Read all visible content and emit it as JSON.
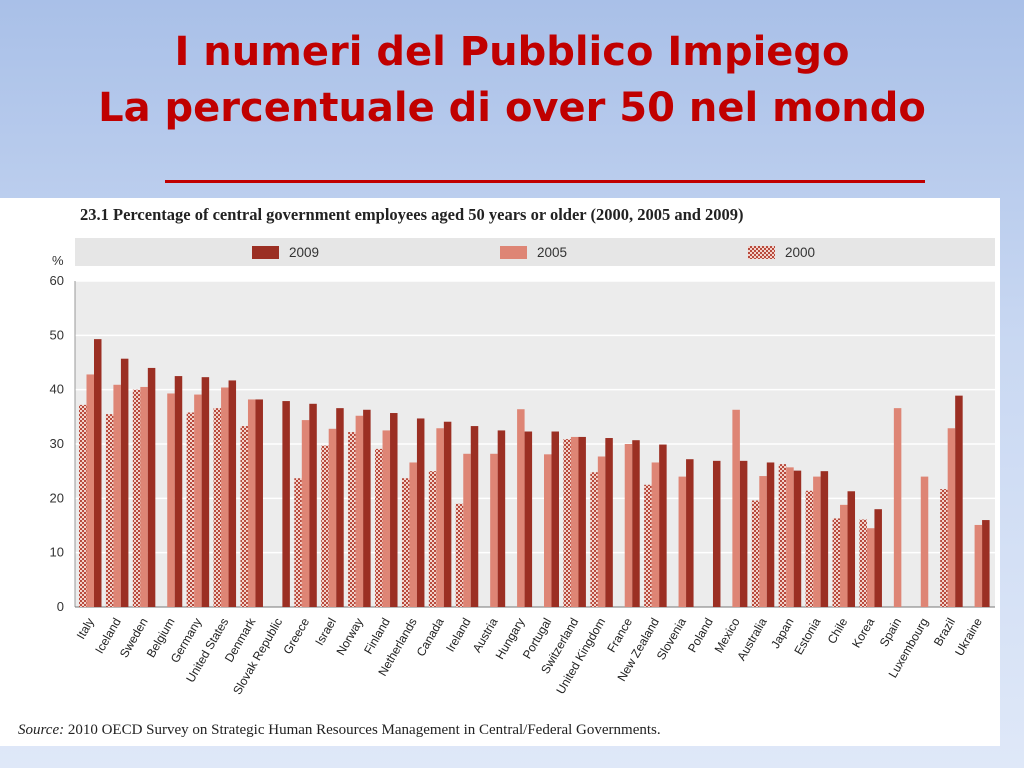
{
  "slide": {
    "title_line1": "I numeri del Pubblico Impiego",
    "title_line2": "La percentuale di over 50 nel mondo"
  },
  "colors": {
    "y2009": "#9b2f23",
    "y2005": "#de8575",
    "y2000": "#c2584a",
    "title_red": "#c00000",
    "legend_band": "#e6e6e6",
    "plot_bg": "#ececec"
  },
  "source": {
    "label": "Source:",
    "text": "2010 OECD Survey on Strategic Human Resources Management in Central/Federal Governments."
  },
  "chart_data": {
    "type": "bar",
    "title": "23.1  Percentage of central government employees aged 50 years or older (2000, 2005 and 2009)",
    "ylabel": "%",
    "xlabel": "",
    "ylim": [
      0,
      60
    ],
    "yticks": [
      0,
      10,
      20,
      30,
      40,
      50,
      60
    ],
    "grid": true,
    "legend_position": "top",
    "categories": [
      "Italy",
      "Iceland",
      "Sweden",
      "Belgium",
      "Germany",
      "United States",
      "Denmark",
      "Slovak Republic",
      "Greece",
      "Israel",
      "Norway",
      "Finland",
      "Netherlands",
      "Canada",
      "Ireland",
      "Austria",
      "Hungary",
      "Portugal",
      "Switzerland",
      "United Kingdom",
      "France",
      "New Zealand",
      "Slovenia",
      "Poland",
      "Mexico",
      "Australia",
      "Japan",
      "Estonia",
      "Chile",
      "Korea",
      "Spain",
      "Luxembourg",
      "Brazil",
      "Ukraine"
    ],
    "series": [
      {
        "name": "2009",
        "values": [
          49.3,
          45.7,
          44.0,
          42.5,
          42.3,
          41.7,
          38.2,
          37.9,
          37.4,
          36.6,
          36.3,
          35.7,
          34.7,
          34.1,
          33.3,
          32.5,
          32.3,
          32.3,
          31.3,
          31.1,
          30.7,
          29.9,
          27.2,
          26.9,
          26.9,
          26.6,
          25.1,
          25.0,
          21.3,
          18.0,
          null,
          null,
          38.9,
          16.0
        ]
      },
      {
        "name": "2005",
        "values": [
          42.8,
          40.9,
          40.5,
          39.3,
          39.1,
          40.4,
          38.2,
          null,
          34.4,
          32.8,
          35.2,
          32.5,
          26.6,
          32.9,
          28.2,
          28.2,
          36.4,
          28.1,
          31.3,
          27.7,
          30.0,
          26.6,
          24.0,
          null,
          36.3,
          24.1,
          25.7,
          24.0,
          18.8,
          14.5,
          36.6,
          24.0,
          32.9,
          15.1
        ]
      },
      {
        "name": "2000",
        "values": [
          37.2,
          35.5,
          40.0,
          null,
          35.8,
          36.6,
          33.3,
          null,
          23.7,
          29.7,
          32.2,
          29.1,
          23.7,
          25.0,
          19.0,
          null,
          null,
          null,
          30.9,
          24.8,
          null,
          22.5,
          null,
          null,
          null,
          19.6,
          26.3,
          21.4,
          16.3,
          16.1,
          null,
          null,
          21.7,
          null
        ]
      }
    ]
  }
}
